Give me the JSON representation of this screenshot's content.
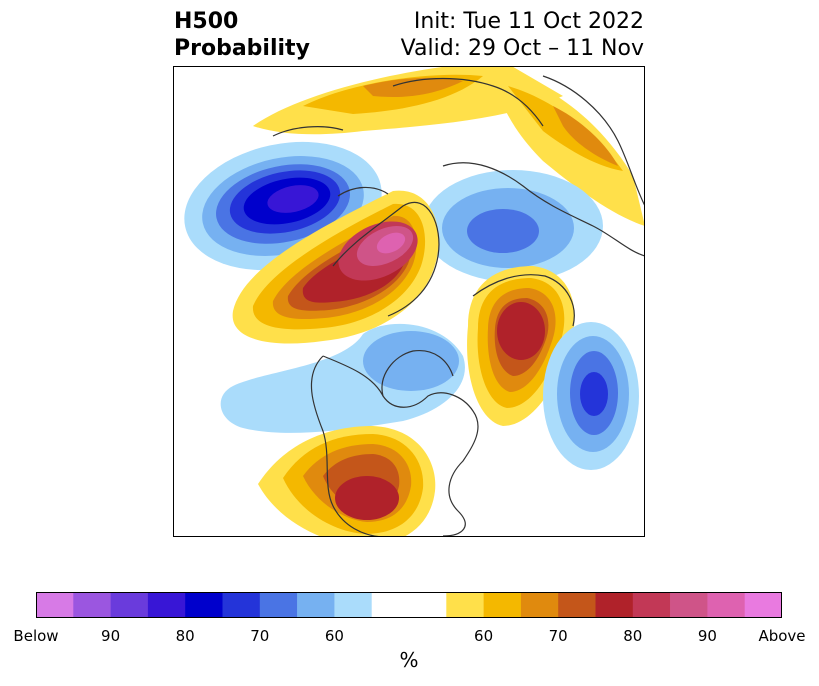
{
  "header": {
    "title_line1": "H500",
    "title_line2": "Probability",
    "init_text": "Init: Tue 11 Oct 2022",
    "valid_text": "Valid: 29 Oct – 11 Nov"
  },
  "map": {
    "projection": "north-polar-stereographic",
    "land_outline_color": "#333333"
  },
  "colorbar": {
    "unit": "%",
    "tick_labels": [
      "Below",
      "90",
      "80",
      "70",
      "60",
      "60",
      "70",
      "80",
      "90",
      "Above"
    ],
    "colors": [
      "#d77ae6",
      "#9b56e0",
      "#6a3bdc",
      "#3816d6",
      "#0000cc",
      "#2434d9",
      "#4a74e4",
      "#76b1f1",
      "#aadcfb",
      "#ffffff",
      "#ffffff",
      "#ffe04a",
      "#f4b800",
      "#e08a0e",
      "#c4561a",
      "#b0222a",
      "#c23856",
      "#cf5488",
      "#de62b0",
      "#e97ae0"
    ]
  }
}
